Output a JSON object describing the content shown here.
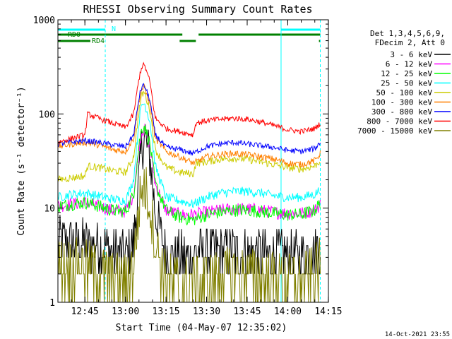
{
  "chart_data": {
    "type": "line",
    "title": "RHESSI Observing Summary Count Rates",
    "xlabel": "Start Time (04-May-07 12:35:02)",
    "ylabel": "Count Rate (s⁻¹ detector⁻¹)",
    "yscale": "log",
    "ylim": [
      1,
      1000
    ],
    "xlim_minutes": [
      0,
      100
    ],
    "x_ticks": [
      "12:45",
      "13:00",
      "13:15",
      "13:30",
      "13:45",
      "14:00",
      "14:15"
    ],
    "y_ticks": [
      "1",
      "10",
      "100",
      "1000"
    ],
    "legend_header": [
      "Det 1,3,4,5,6,9,",
      "FDecim 2, Att 0"
    ],
    "timestamp": "14-Oct-2021 23:55",
    "flag_labels": {
      "N": "N",
      "RD0": "RD0",
      "RD4": "RD4"
    },
    "flags": {
      "night": {
        "color": "#00ffff",
        "intervals": [
          [
            0,
            17.5
          ],
          [
            82.5,
            97
          ]
        ]
      },
      "RD0": {
        "color": "#008000",
        "intervals": [
          [
            0,
            46
          ],
          [
            52,
            97
          ]
        ]
      },
      "RD4": {
        "color": "#008000",
        "intervals": [
          [
            0,
            12
          ],
          [
            45,
            51
          ],
          [
            96.5,
            97
          ]
        ]
      }
    },
    "vlines_cyan": [
      17.5,
      82.5,
      97
    ],
    "series": [
      {
        "name": "3 - 6 keV",
        "color": "#000000",
        "x": [
          0,
          5,
          10,
          15,
          20,
          25,
          28,
          30,
          31,
          32,
          34,
          36,
          40,
          45,
          50,
          55,
          60,
          65,
          70,
          75,
          80,
          85,
          90,
          95,
          97
        ],
        "y": [
          4.5,
          4.4,
          4.2,
          4.0,
          3.5,
          3.0,
          4.5,
          20,
          45,
          55,
          35,
          9,
          3.2,
          3.0,
          3.2,
          3.4,
          3.5,
          3.5,
          3.4,
          3.3,
          3.2,
          3.1,
          3.1,
          3.4,
          4.0
        ]
      },
      {
        "name": "6 - 12 keV",
        "color": "#ff00ff",
        "x": [
          0,
          5,
          10,
          15,
          20,
          25,
          28,
          30,
          31,
          32,
          34,
          36,
          40,
          45,
          50,
          55,
          60,
          65,
          70,
          75,
          80,
          85,
          90,
          95,
          97
        ],
        "y": [
          10.5,
          11,
          11.5,
          10.5,
          9.5,
          9.2,
          14,
          45,
          65,
          70,
          45,
          18,
          9.5,
          8.5,
          8.5,
          9,
          9.5,
          9.8,
          9.8,
          9.5,
          9,
          8.8,
          8.8,
          9.5,
          11
        ]
      },
      {
        "name": "12 - 25 keV",
        "color": "#00ff00",
        "x": [
          0,
          5,
          10,
          15,
          20,
          25,
          28,
          30,
          31,
          32,
          34,
          36,
          40,
          45,
          50,
          55,
          60,
          65,
          70,
          75,
          80,
          85,
          90,
          95,
          97
        ],
        "y": [
          10.5,
          11,
          11.5,
          10.5,
          9.5,
          9.2,
          14,
          48,
          70,
          75,
          48,
          18,
          9.5,
          8,
          7.5,
          8.5,
          9,
          9.5,
          9.5,
          9.2,
          8.8,
          8.5,
          8.5,
          9.5,
          11.5
        ]
      },
      {
        "name": "25 - 50 keV",
        "color": "#00ffff",
        "x": [
          0,
          5,
          10,
          15,
          20,
          25,
          28,
          30,
          31,
          32,
          34,
          36,
          40,
          45,
          50,
          55,
          60,
          65,
          70,
          75,
          80,
          85,
          90,
          95,
          97
        ],
        "y": [
          13,
          14,
          14.5,
          13.5,
          12.5,
          12,
          20,
          85,
          125,
          130,
          85,
          28,
          13,
          12,
          11,
          13,
          14.5,
          15,
          15,
          14.5,
          13.5,
          13,
          13,
          14,
          16
        ]
      },
      {
        "name": "50 - 100 keV",
        "color": "#cccc00",
        "x": [
          0,
          5,
          10,
          11,
          15,
          20,
          25,
          28,
          30,
          31,
          32,
          34,
          36,
          40,
          45,
          50,
          51,
          55,
          60,
          65,
          70,
          75,
          80,
          85,
          90,
          95,
          97
        ],
        "y": [
          20,
          21,
          22,
          28,
          27,
          25,
          24,
          35,
          110,
          160,
          170,
          110,
          42,
          27,
          24,
          23,
          30,
          31,
          33,
          34,
          33,
          31,
          29,
          27,
          26,
          28,
          32
        ]
      },
      {
        "name": "100 - 300 keV",
        "color": "#ff8000",
        "x": [
          0,
          5,
          10,
          15,
          20,
          25,
          28,
          30,
          31,
          32,
          34,
          36,
          40,
          45,
          50,
          55,
          60,
          65,
          70,
          75,
          80,
          85,
          90,
          95,
          97
        ],
        "y": [
          45,
          48,
          50,
          47,
          42,
          40,
          55,
          140,
          185,
          190,
          130,
          55,
          40,
          35,
          30,
          35,
          37,
          38,
          37,
          35,
          33,
          30,
          29,
          32,
          38
        ]
      },
      {
        "name": "300 - 800 keV",
        "color": "#0000ff",
        "x": [
          0,
          5,
          10,
          15,
          20,
          25,
          28,
          30,
          31,
          32,
          34,
          36,
          40,
          45,
          50,
          55,
          60,
          65,
          70,
          75,
          80,
          85,
          90,
          95,
          97
        ],
        "y": [
          48,
          50,
          52,
          50,
          47,
          45,
          60,
          150,
          195,
          200,
          140,
          60,
          44,
          42,
          38,
          45,
          48,
          50,
          48,
          46,
          44,
          41,
          40,
          43,
          50
        ]
      },
      {
        "name": "800 - 7000 keV",
        "color": "#ff0000",
        "x": [
          0,
          5,
          10,
          11,
          15,
          20,
          25,
          28,
          30,
          31,
          32,
          34,
          36,
          40,
          45,
          50,
          51,
          55,
          60,
          65,
          70,
          75,
          80,
          85,
          90,
          95,
          97
        ],
        "y": [
          50,
          55,
          60,
          100,
          90,
          80,
          72,
          100,
          240,
          320,
          330,
          220,
          90,
          70,
          65,
          60,
          80,
          85,
          88,
          90,
          88,
          82,
          75,
          68,
          65,
          70,
          80
        ]
      },
      {
        "name": "7000 - 15000 keV",
        "color": "#808000",
        "x": [
          0,
          5,
          10,
          15,
          20,
          25,
          28,
          30,
          31,
          32,
          34,
          36,
          40,
          45,
          50,
          55,
          60,
          65,
          70,
          75,
          80,
          85,
          90,
          95,
          97
        ],
        "y": [
          2.5,
          2.5,
          2.4,
          2.2,
          1.8,
          1.7,
          2.5,
          10,
          16,
          17,
          11,
          4,
          1.8,
          1.6,
          1.5,
          1.7,
          1.9,
          2.0,
          2.0,
          1.9,
          1.8,
          1.7,
          1.7,
          2.1,
          2.5
        ]
      }
    ]
  }
}
